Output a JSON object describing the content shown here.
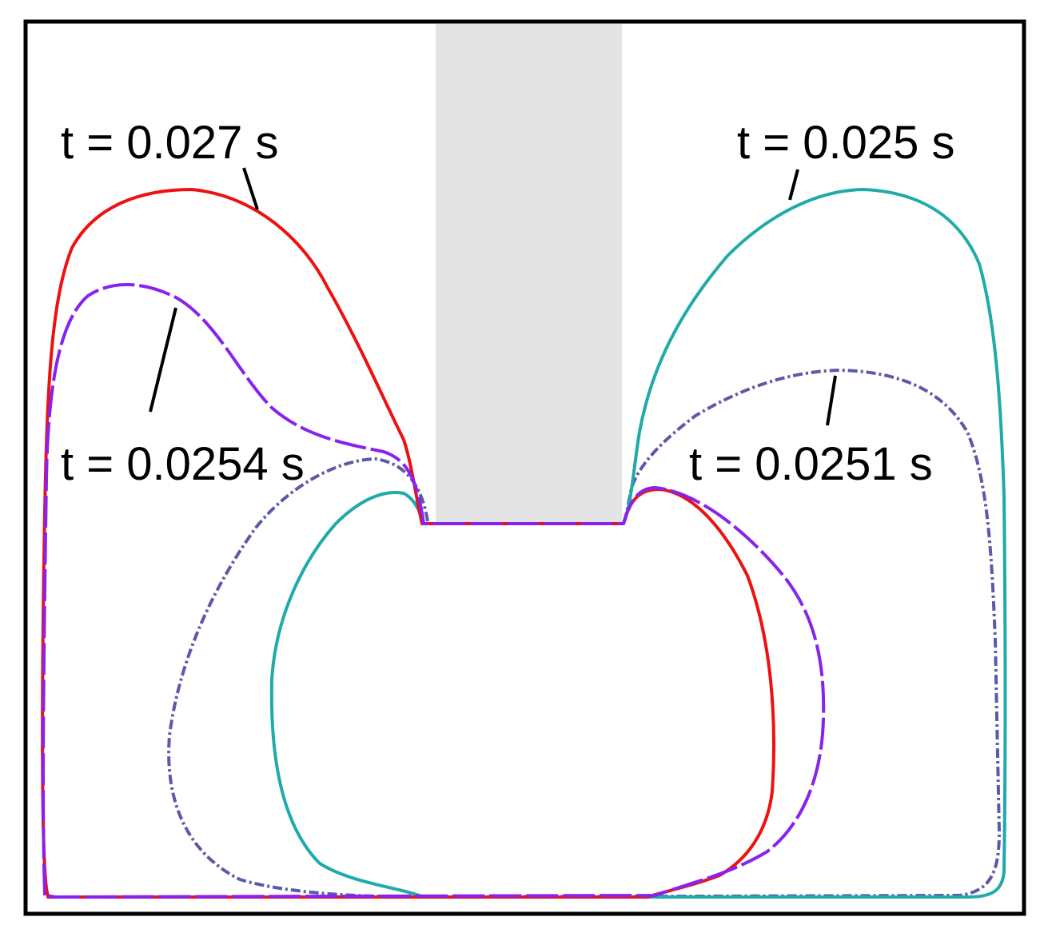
{
  "labels": [
    "t = 0.027 s",
    "t = 0.025 s",
    "t = 0.0254 s",
    "t = 0.0251 s"
  ]
}
